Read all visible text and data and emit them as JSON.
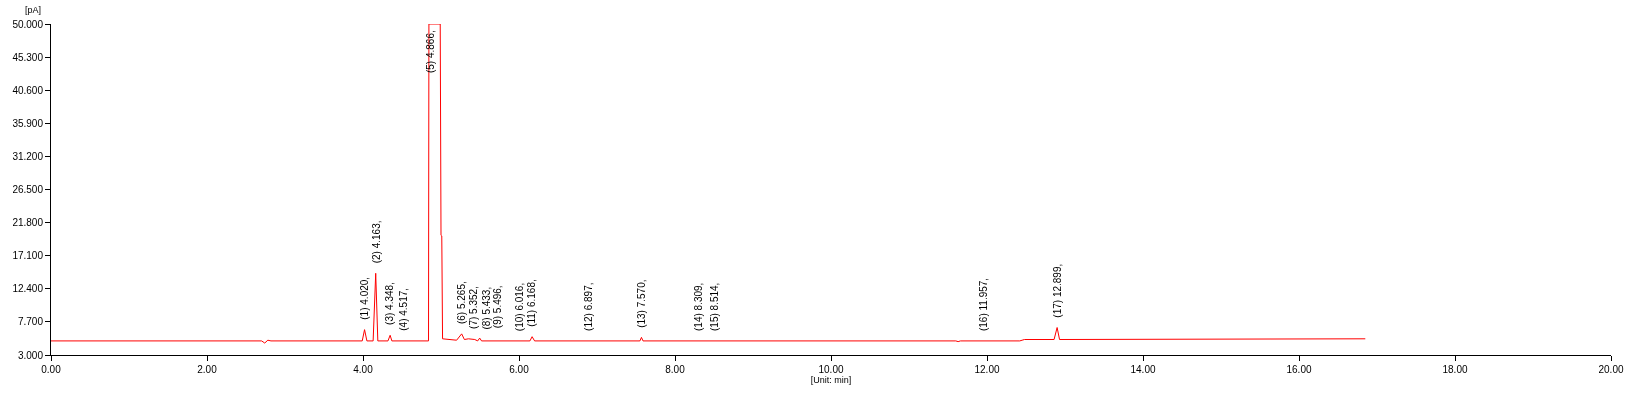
{
  "chart_data": {
    "type": "line",
    "xlabel": "[Unit: min]",
    "ylabel": "[pA]",
    "x": [
      0,
      2.7,
      2.74,
      2.78,
      2.82,
      3.99,
      4.02,
      4.05,
      4.13,
      4.163,
      4.19,
      4.32,
      4.348,
      4.37,
      4.84,
      4.845,
      4.99,
      5.0,
      5.01,
      5.02,
      5.2,
      5.265,
      5.3,
      5.352,
      5.433,
      5.47,
      5.496,
      5.52,
      6.14,
      6.168,
      6.2,
      7.55,
      7.57,
      7.59,
      11.6,
      11.63,
      11.66,
      12.42,
      12.45,
      12.48,
      12.86,
      12.899,
      12.93,
      16.85
    ],
    "series": [
      {
        "color": "#ff0000",
        "values": [
          5.0,
          5.0,
          4.7,
          5.1,
          5.0,
          5.0,
          6.6,
          5.0,
          5.0,
          14.6,
          5.0,
          5.0,
          5.8,
          5.0,
          5.0,
          50,
          50,
          20,
          19.9,
          5.3,
          5.1,
          6.0,
          5.2,
          5.3,
          5.2,
          5.0,
          5.4,
          5.0,
          5.0,
          5.6,
          5.0,
          5.0,
          5.5,
          5.0,
          5.0,
          4.9,
          5.0,
          5.0,
          5.1,
          5.2,
          5.2,
          6.9,
          5.2,
          5.3
        ]
      }
    ],
    "xlim": [
      0,
      20
    ],
    "ylim": [
      3,
      50
    ],
    "xticks": [
      {
        "value": 0,
        "label": "0.00"
      },
      {
        "value": 2,
        "label": "2.00"
      },
      {
        "value": 4,
        "label": "4.00"
      },
      {
        "value": 6,
        "label": "6.00"
      },
      {
        "value": 8,
        "label": "8.00"
      },
      {
        "value": 10,
        "label": "10.00"
      },
      {
        "value": 12,
        "label": "12.00"
      },
      {
        "value": 14,
        "label": "14.00"
      },
      {
        "value": 16,
        "label": "16.00"
      },
      {
        "value": 18,
        "label": "18.00"
      },
      {
        "value": 20,
        "label": "20.00"
      }
    ],
    "yticks": [
      {
        "value": 3,
        "label": "3.000"
      },
      {
        "value": 7.7,
        "label": "7.700"
      },
      {
        "value": 12.4,
        "label": "12.400"
      },
      {
        "value": 17.1,
        "label": "17.100"
      },
      {
        "value": 21.8,
        "label": "21.800"
      },
      {
        "value": 26.5,
        "label": "26.500"
      },
      {
        "value": 31.2,
        "label": "31.200"
      },
      {
        "value": 35.9,
        "label": "35.900"
      },
      {
        "value": 40.6,
        "label": "40.600"
      },
      {
        "value": 45.3,
        "label": "45.300"
      },
      {
        "value": 50,
        "label": "50.000"
      }
    ],
    "marker": "none",
    "line_style": "solid",
    "annotations": [
      {
        "text": "(1) 4.020,",
        "x": 4.02,
        "y": 6.6
      },
      {
        "text": "(2) 4.163,",
        "x": 4.163,
        "y": 14.6
      },
      {
        "text": "(3) 4.348,",
        "x": 4.348,
        "y": 5.8
      },
      {
        "text": "(4) 4.517,",
        "x": 4.517,
        "y": 5.0
      },
      {
        "text": "(5) 4.866,",
        "x": 4.866,
        "y": 50
      },
      {
        "text": "(6) 5.265,",
        "x": 5.265,
        "y": 6.0
      },
      {
        "text": "(7) 5.352,",
        "x": 5.352,
        "y": 5.3
      },
      {
        "text": "(8) 5.433,",
        "x": 5.433,
        "y": 5.2
      },
      {
        "text": "(9) 5.496,",
        "x": 5.496,
        "y": 5.4
      },
      {
        "text": "(10) 6.016,",
        "x": 6.016,
        "y": 5.0
      },
      {
        "text": "(11) 6.168,",
        "x": 6.168,
        "y": 5.6
      },
      {
        "text": "(12) 6.897,",
        "x": 6.897,
        "y": 5.0
      },
      {
        "text": "(13) 7.570,",
        "x": 7.57,
        "y": 5.5
      },
      {
        "text": "(14) 8.309,",
        "x": 8.309,
        "y": 5.0
      },
      {
        "text": "(15) 8.514,",
        "x": 8.514,
        "y": 5.0
      },
      {
        "text": "(16) 11.957,",
        "x": 11.957,
        "y": 5.0
      },
      {
        "text": "(17) 12.899,",
        "x": 12.899,
        "y": 6.9
      }
    ]
  }
}
